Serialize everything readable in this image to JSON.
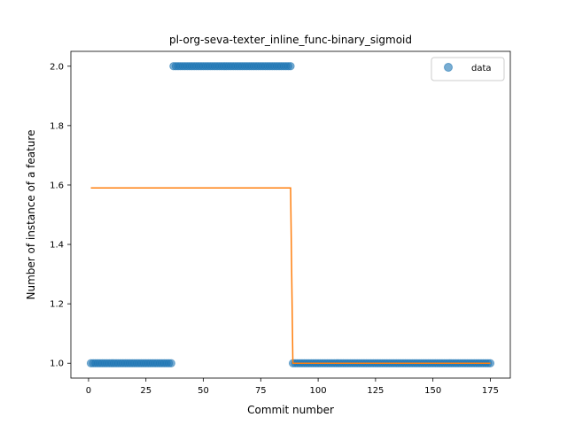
{
  "chart_data": {
    "type": "scatter",
    "title": "pl-org-seva-texter_inline_func-binary_sigmoid",
    "xlabel": "Commit number",
    "ylabel": "Number of instance of a feature",
    "xlim": [
      -7.7,
      183.7
    ],
    "ylim": [
      0.95,
      2.05
    ],
    "xticks": [
      0,
      25,
      50,
      75,
      100,
      125,
      150,
      175
    ],
    "yticks": [
      1.0,
      1.2,
      1.4,
      1.6,
      1.8,
      2.0
    ],
    "ytick_labels": [
      "1.0",
      "1.2",
      "1.4",
      "1.6",
      "1.8",
      "2.0"
    ],
    "grid": false,
    "legend_position": "top-right",
    "colors": {
      "data": "#1f77b4",
      "fit": "#ff7f0e"
    },
    "series": [
      {
        "name": "data",
        "kind": "scatter",
        "segments": [
          {
            "x_start": 1,
            "x_end": 36,
            "y": 1.0
          },
          {
            "x_start": 37,
            "x_end": 88,
            "y": 2.0
          },
          {
            "x_start": 89,
            "x_end": 175,
            "y": 1.0
          }
        ]
      },
      {
        "kind": "line",
        "x": [
          1,
          88,
          89,
          175
        ],
        "y": [
          1.59,
          1.59,
          1.0,
          1.0
        ]
      }
    ]
  }
}
